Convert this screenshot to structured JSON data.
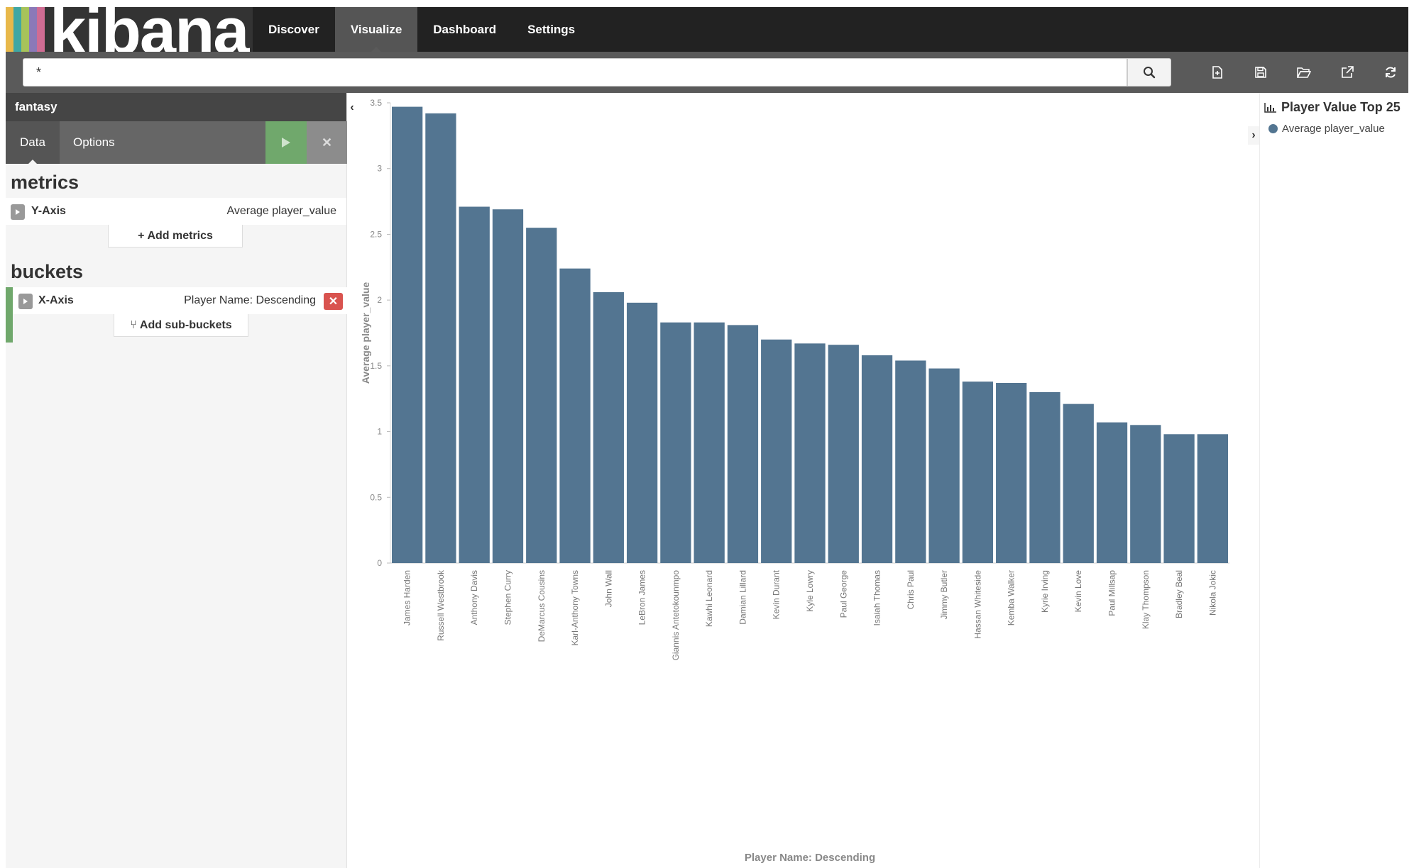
{
  "app": {
    "logo_text": "kibana",
    "logo_stripes": [
      "#e8b84a",
      "#3fa7a4",
      "#a7c35a",
      "#8b79b8",
      "#d06c93"
    ]
  },
  "nav": {
    "items": [
      {
        "label": "Discover",
        "active": false
      },
      {
        "label": "Visualize",
        "active": true
      },
      {
        "label": "Dashboard",
        "active": false
      },
      {
        "label": "Settings",
        "active": false
      }
    ]
  },
  "search": {
    "query": "*",
    "icons": {
      "submit": "search-icon"
    }
  },
  "toolbar": {
    "icons": [
      "new-document-icon",
      "save-icon",
      "open-folder-icon",
      "share-icon",
      "refresh-icon"
    ]
  },
  "sidebar": {
    "index_pattern": "fantasy",
    "tabs": {
      "data": "Data",
      "options": "Options"
    },
    "metrics": {
      "title": "metrics",
      "items": [
        {
          "label": "Y-Axis",
          "desc": "Average player_value"
        }
      ],
      "add_label": "Add metrics"
    },
    "buckets": {
      "title": "buckets",
      "items": [
        {
          "label": "X-Axis",
          "desc": "Player Name: Descending"
        }
      ],
      "add_label": "Add sub-buckets"
    }
  },
  "legend": {
    "title": "Player Value Top 25",
    "items": [
      {
        "label": "Average player_value",
        "color": "#537591"
      }
    ]
  },
  "chart_data": {
    "type": "bar",
    "categories": [
      "James Harden",
      "Russell Westbrook",
      "Anthony Davis",
      "Stephen Curry",
      "DeMarcus Cousins",
      "Karl-Anthony Towns",
      "John Wall",
      "LeBron James",
      "Giannis Antetokounmpo",
      "Kawhi Leonard",
      "Damian Lillard",
      "Kevin Durant",
      "Kyle Lowry",
      "Paul George",
      "Isaiah Thomas",
      "Chris Paul",
      "Jimmy Butler",
      "Hassan Whiteside",
      "Kemba Walker",
      "Kyrie Irving",
      "Kevin Love",
      "Paul Millsap",
      "Klay Thompson",
      "Bradley Beal",
      "Nikola Jokic"
    ],
    "values": [
      3.47,
      3.42,
      2.71,
      2.69,
      2.55,
      2.24,
      2.06,
      1.98,
      1.83,
      1.83,
      1.81,
      1.7,
      1.67,
      1.66,
      1.58,
      1.54,
      1.48,
      1.38,
      1.37,
      1.3,
      1.21,
      1.07,
      1.05,
      0.98,
      0.98
    ],
    "xlabel": "Player Name: Descending",
    "ylabel": "Average player_value",
    "ylim": [
      0,
      3.5
    ],
    "yticks": [
      "0",
      "0.5",
      "1",
      "1.5",
      "2",
      "2.5",
      "3",
      "3.5"
    ],
    "color": "#537591",
    "grid": false
  }
}
